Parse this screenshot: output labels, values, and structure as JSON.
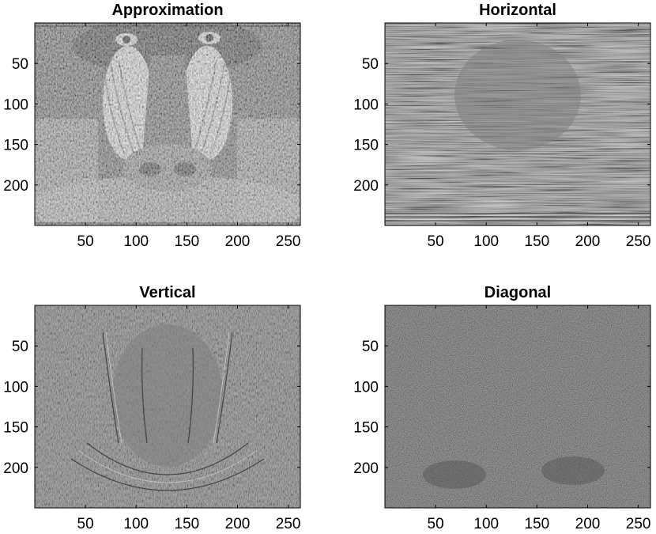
{
  "figure": {
    "type": "wavelet-decomposition-image-grid"
  },
  "chart_data": [
    {
      "type": "heatmap",
      "title": "Approximation",
      "image_kind": "mandrill-approximation",
      "xlim": [
        0,
        262
      ],
      "ylim": [
        0,
        250
      ],
      "x_ticks": [
        50,
        100,
        150,
        200,
        250
      ],
      "y_ticks": [
        50,
        100,
        150,
        200
      ],
      "colormap": "gray"
    },
    {
      "type": "heatmap",
      "title": "Horizontal",
      "image_kind": "horizontal-detail",
      "xlim": [
        0,
        262
      ],
      "ylim": [
        0,
        250
      ],
      "x_ticks": [
        50,
        100,
        150,
        200,
        250
      ],
      "y_ticks": [
        50,
        100,
        150,
        200
      ],
      "colormap": "gray"
    },
    {
      "type": "heatmap",
      "title": "Vertical",
      "image_kind": "vertical-detail",
      "xlim": [
        0,
        262
      ],
      "ylim": [
        0,
        250
      ],
      "x_ticks": [
        50,
        100,
        150,
        200,
        250
      ],
      "y_ticks": [
        50,
        100,
        150,
        200
      ],
      "colormap": "gray"
    },
    {
      "type": "heatmap",
      "title": "Diagonal",
      "image_kind": "diagonal-detail",
      "xlim": [
        0,
        262
      ],
      "ylim": [
        0,
        250
      ],
      "x_ticks": [
        50,
        100,
        150,
        200,
        250
      ],
      "y_ticks": [
        50,
        100,
        150,
        200
      ],
      "colormap": "gray"
    }
  ],
  "colors": {
    "approximation_base": "#6e6e6e",
    "detail_base": "#7f7f7f",
    "diagonal_base": "#5f5f5f"
  }
}
